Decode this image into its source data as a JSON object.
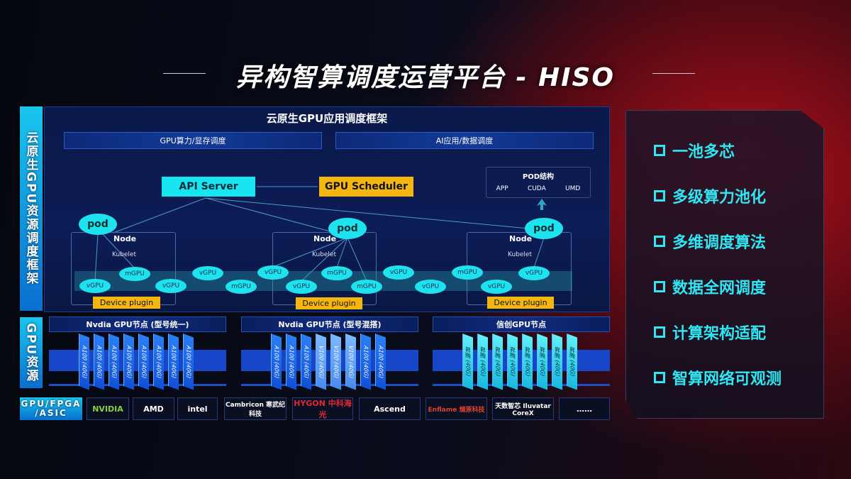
{
  "title": "异构智算调度运营平台 - HISO",
  "left_labels": {
    "top": "云原生GPU资源调度框架",
    "mid": "GPU资源",
    "bottom": "GPU/FPGA /ASIC"
  },
  "framework": {
    "title": "云原生GPU应用调度框架",
    "bars": [
      "GPU算力/显存调度",
      "AI应用/数据调度"
    ]
  },
  "api_server": "API Server",
  "gpu_scheduler": "GPU Scheduler",
  "pod_struct": {
    "title": "POD结构",
    "items": [
      "APP",
      "CUDA",
      "UMD"
    ]
  },
  "pod_label": "pod",
  "node_label": "Node",
  "kubelet_label": "Kubelet",
  "device_plugin": "Device plugin",
  "gpu_units": [
    "vGPU",
    "mGPU",
    "vGPU",
    "vGPU",
    "mGPU",
    "vGPU",
    "vGPU",
    "mGPU",
    "mGPU",
    "vGPU",
    "vGPU",
    "mGPU",
    "vGPU",
    "vGPU"
  ],
  "node_groups": [
    {
      "title": "Nvdia GPU节点 (型号统一)",
      "chips": [
        "A100 (40G)",
        "A100 (40G)",
        "A100 (40G)",
        "A100 (40G)",
        "A100 (40G)",
        "A100 (40G)",
        "A100 (40G)",
        "A100 (40G)"
      ]
    },
    {
      "title": "Nvdia GPU节点 (型号混搭)",
      "chips": [
        "A100 (40G)",
        "A100 (40G)",
        "A100 (40G)",
        "V100 (40G)",
        "V100 (40G)",
        "V100 (40G)",
        "A100 (40G)",
        "A100 (40G)"
      ]
    },
    {
      "title": "信创GPU节点",
      "chips": [
        "昇腾 (40G)",
        "昇腾 (40G)",
        "昇腾 (40G)",
        "昇腾 (40G)",
        "昇腾 (40G)",
        "昇腾 (40G)",
        "昇腾 (40G)",
        "昇腾 (40G)"
      ]
    }
  ],
  "vendors": [
    "NVIDIA",
    "AMD",
    "intel",
    "Cambricon 寒武纪科技",
    "HYGON 中科海光",
    "Ascend",
    "Enflame 燧原科技",
    "天数智芯 Iluvatar CoreX",
    "……"
  ],
  "features": [
    "一池多芯",
    "多级算力池化",
    "多维调度算法",
    "数据全网调度",
    "计算架构适配",
    "智算网络可观测"
  ],
  "colors": {
    "cyan": "#1ee3ef",
    "yellow": "#f5b60e",
    "blue": "#1746c8",
    "red": "#b0101a"
  }
}
